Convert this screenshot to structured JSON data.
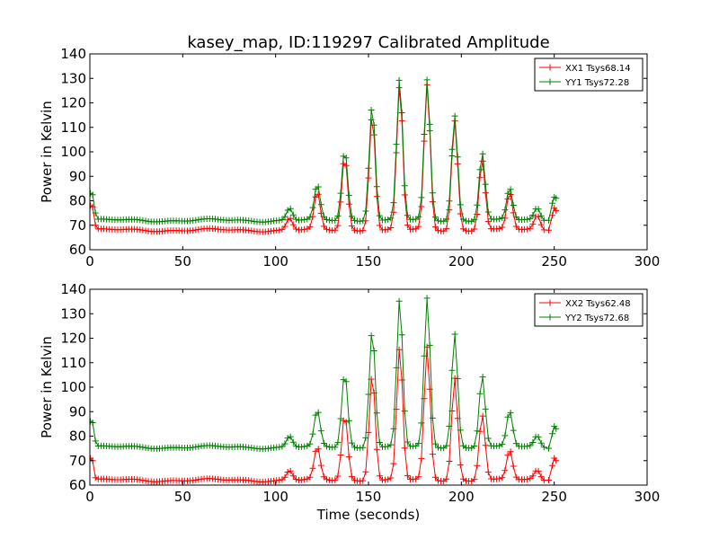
{
  "figure": {
    "title": "kasey_map, ID:119297 Calibrated Amplitude",
    "xlabel": "Time (seconds)"
  },
  "chart_data": [
    {
      "type": "line",
      "title": "kasey_map, ID:119297 Calibrated Amplitude",
      "xlabel": "",
      "ylabel": "Power in Kelvin",
      "xlim": [
        0,
        300
      ],
      "ylim": [
        60,
        140
      ],
      "xticks": [
        "0",
        "50",
        "100",
        "150",
        "200",
        "250",
        "300"
      ],
      "yticks": [
        "60",
        "70",
        "80",
        "90",
        "100",
        "110",
        "120",
        "130",
        "140"
      ],
      "grid": false,
      "legend_position": "top-right",
      "base_levels": {
        "XX1": 68,
        "YY1": 72
      },
      "peaks": [
        {
          "t": 107.5,
          "XX1": 73,
          "YY1": 77
        },
        {
          "t": 122.4,
          "XX1": 83,
          "YY1": 86
        },
        {
          "t": 137.2,
          "XX1": 98,
          "YY1": 101
        },
        {
          "t": 152.0,
          "XX1": 116,
          "YY1": 120
        },
        {
          "t": 166.8,
          "XX1": 127,
          "YY1": 130
        },
        {
          "t": 181.6,
          "XX1": 127,
          "YY1": 129
        },
        {
          "t": 196.4,
          "XX1": 113,
          "YY1": 115
        },
        {
          "t": 211.2,
          "XX1": 97,
          "YY1": 100
        },
        {
          "t": 226.0,
          "XX1": 83,
          "YY1": 85
        },
        {
          "t": 240.8,
          "XX1": 74,
          "YY1": 77
        }
      ],
      "series": [
        {
          "name": "XX1 Tsys68.14",
          "key": "XX1",
          "color": "#ff0000",
          "start": [
            [
              0.3,
              78
            ],
            [
              1.5,
              77.5
            ],
            [
              3,
              70
            ]
          ],
          "end": [
            [
              247,
              68
            ],
            [
              249,
              74
            ],
            [
              250,
              77
            ],
            [
              251,
              76
            ]
          ]
        },
        {
          "name": "YY1 Tsys72.28",
          "key": "YY1",
          "color": "#008000",
          "start": [
            [
              0.3,
              83
            ],
            [
              1.5,
              82.5
            ],
            [
              3,
              75
            ]
          ],
          "end": [
            [
              247,
              72
            ],
            [
              249,
              79
            ],
            [
              250,
              81.5
            ],
            [
              251,
              81
            ]
          ]
        }
      ]
    },
    {
      "type": "line",
      "xlabel": "Time (seconds)",
      "ylabel": "Power in Kelvin",
      "xlim": [
        0,
        300
      ],
      "ylim": [
        60,
        140
      ],
      "xticks": [
        "0",
        "50",
        "100",
        "150",
        "200",
        "250",
        "300"
      ],
      "yticks": [
        "60",
        "70",
        "80",
        "90",
        "100",
        "110",
        "120",
        "130",
        "140"
      ],
      "grid": false,
      "legend_position": "top-right",
      "base_levels": {
        "XX2": 62,
        "YY2": 75.5
      },
      "peaks": [
        {
          "t": 107.5,
          "XX2": 66,
          "YY2": 80
        },
        {
          "t": 122.4,
          "XX2": 75,
          "YY2": 90
        },
        {
          "t": 137.2,
          "XX2": 89,
          "YY2": 106
        },
        {
          "t": 152.0,
          "XX2": 106,
          "YY2": 124
        },
        {
          "t": 166.8,
          "XX2": 116,
          "YY2": 136
        },
        {
          "t": 181.6,
          "XX2": 116,
          "YY2": 136
        },
        {
          "t": 196.4,
          "XX2": 104,
          "YY2": 122
        },
        {
          "t": 211.2,
          "XX2": 89,
          "YY2": 105
        },
        {
          "t": 226.0,
          "XX2": 74,
          "YY2": 90
        },
        {
          "t": 240.8,
          "XX2": 66,
          "YY2": 80
        }
      ],
      "series": [
        {
          "name": "XX2 Tsys62.48",
          "key": "XX2",
          "color": "#ff0000",
          "start": [
            [
              0.3,
              71
            ],
            [
              1.5,
              70
            ],
            [
              3,
              63
            ]
          ],
          "end": [
            [
              247,
              62
            ],
            [
              249,
              68
            ],
            [
              250,
              71
            ],
            [
              251,
              70
            ]
          ]
        },
        {
          "name": "YY2 Tsys72.68",
          "key": "YY2",
          "color": "#008000",
          "start": [
            [
              0.3,
              86
            ],
            [
              1.5,
              85.5
            ],
            [
              3,
              78
            ]
          ],
          "end": [
            [
              247,
              75
            ],
            [
              249,
              81
            ],
            [
              250,
              84
            ],
            [
              251,
              83
            ]
          ]
        }
      ]
    }
  ]
}
